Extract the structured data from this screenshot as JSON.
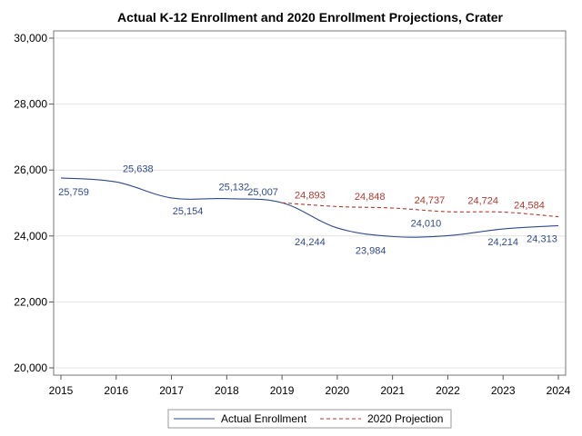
{
  "chart_data": {
    "type": "line",
    "title": "Actual K-12 Enrollment and 2020 Enrollment Projections, Crater",
    "xlabel": "",
    "ylabel": "",
    "x": [
      2015,
      2016,
      2017,
      2018,
      2019,
      2020,
      2021,
      2022,
      2023,
      2024
    ],
    "xlim": [
      2015,
      2024
    ],
    "ylim": [
      20000,
      30000
    ],
    "y_ticks": [
      20000,
      22000,
      24000,
      26000,
      28000,
      30000
    ],
    "y_tick_labels": [
      "20,000",
      "22,000",
      "24,000",
      "26,000",
      "28,000",
      "30,000"
    ],
    "x_tick_labels": [
      "2015",
      "2016",
      "2017",
      "2018",
      "2019",
      "2020",
      "2021",
      "2022",
      "2023",
      "2024"
    ],
    "grid": true,
    "legend_position": "bottom-center",
    "series": [
      {
        "name": "Actual Enrollment",
        "color": "#2f4a8a",
        "style": "solid",
        "x": [
          2015,
          2016,
          2017,
          2018,
          2019,
          2020,
          2021,
          2022,
          2023,
          2024
        ],
        "values": [
          25759,
          25638,
          25154,
          25132,
          25007,
          24244,
          23984,
          24010,
          24214,
          24313
        ],
        "labels": [
          "25,759",
          "25,638",
          "25,154",
          "25,132",
          "25,007",
          "24,244",
          "23,984",
          "24,010",
          "24,214",
          "24,313"
        ],
        "label_offsets": [
          [
            14,
            19
          ],
          [
            24,
            -11
          ],
          [
            18,
            18
          ],
          [
            8,
            -9
          ],
          [
            -21,
            -8
          ],
          [
            -30,
            19
          ],
          [
            -24,
            19
          ],
          [
            -24,
            -10
          ],
          [
            0,
            18
          ],
          [
            -18,
            18
          ]
        ]
      },
      {
        "name": "2020 Projection",
        "color": "#b03a2e",
        "style": "dashed",
        "x": [
          2019,
          2020,
          2021,
          2022,
          2023,
          2024
        ],
        "values": [
          25007,
          24893,
          24848,
          24737,
          24724,
          24584
        ],
        "labels": [
          "",
          "24,893",
          "24,848",
          "24,737",
          "24,724",
          "24,584"
        ],
        "label_offsets": [
          [
            0,
            0
          ],
          [
            -30,
            -9
          ],
          [
            -25,
            -9
          ],
          [
            -20,
            -9
          ],
          [
            -22,
            -9
          ],
          [
            -32,
            -9
          ]
        ]
      }
    ]
  }
}
